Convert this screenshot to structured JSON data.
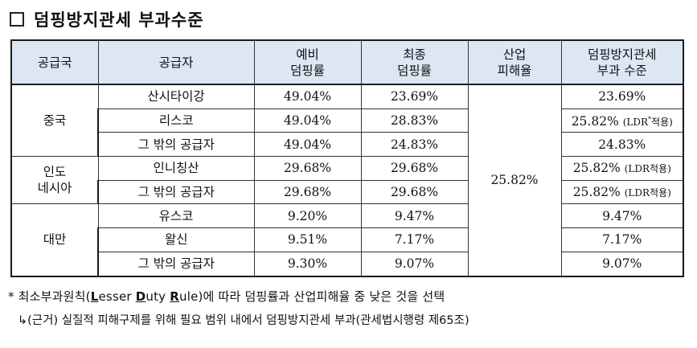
{
  "title": {
    "text": "덤핑방지관세 부과수준"
  },
  "table": {
    "headers": {
      "country": "공급국",
      "supplier": "공급자",
      "prelim": [
        "예비",
        "덤핑률"
      ],
      "final": [
        "최종",
        "덤핑률"
      ],
      "injury": [
        "산업",
        "피해율"
      ],
      "duty": [
        "덤핑방지관세",
        "부과 수준"
      ]
    },
    "countries": {
      "china": "중국",
      "indonesia": [
        "인도",
        "네시아"
      ],
      "taiwan": "대만"
    },
    "injury_margin": "25.82%",
    "rows": [
      {
        "supplier": "산시타이강",
        "prelim": "49.04%",
        "final": "23.69%",
        "duty": "23.69%",
        "ldr": ""
      },
      {
        "supplier": "리스코",
        "prelim": "49.04%",
        "final": "28.83%",
        "duty": "25.82%",
        "ldr": "(LDR",
        "ldr_sup": "*",
        "ldr_end": "적용)"
      },
      {
        "supplier": "그 밖의 공급자",
        "prelim": "49.04%",
        "final": "24.83%",
        "duty": "24.83%",
        "ldr": ""
      },
      {
        "supplier": "인니칭산",
        "prelim": "29.68%",
        "final": "29.68%",
        "duty": "25.82%",
        "ldr": "(LDR적용)"
      },
      {
        "supplier": "그 밖의 공급자",
        "prelim": "29.68%",
        "final": "29.68%",
        "duty": "25.82%",
        "ldr": "(LDR적용)"
      },
      {
        "supplier": "유스코",
        "prelim": "9.20%",
        "final": "9.47%",
        "duty": "9.47%",
        "ldr": ""
      },
      {
        "supplier": "왈신",
        "prelim": "9.51%",
        "final": "7.17%",
        "duty": "7.17%",
        "ldr": ""
      },
      {
        "supplier": "그 밖의 공급자",
        "prelim": "9.30%",
        "final": "9.07%",
        "duty": "9.07%",
        "ldr": ""
      }
    ]
  },
  "notes": {
    "note1": {
      "prefix": "* 최소부과원칙(",
      "L": "L",
      "esser": "esser ",
      "D": "D",
      "uty": "uty ",
      "R": "R",
      "ule": "ule)에 따라 덤핑률과 산업피해율 중 낮은 것을 선택"
    },
    "note2": "↳(근거) 실질적 피해구제를 위해 필요 범위 내에서 덤핑방지관세 부과(관세법시행령 제65조)"
  }
}
